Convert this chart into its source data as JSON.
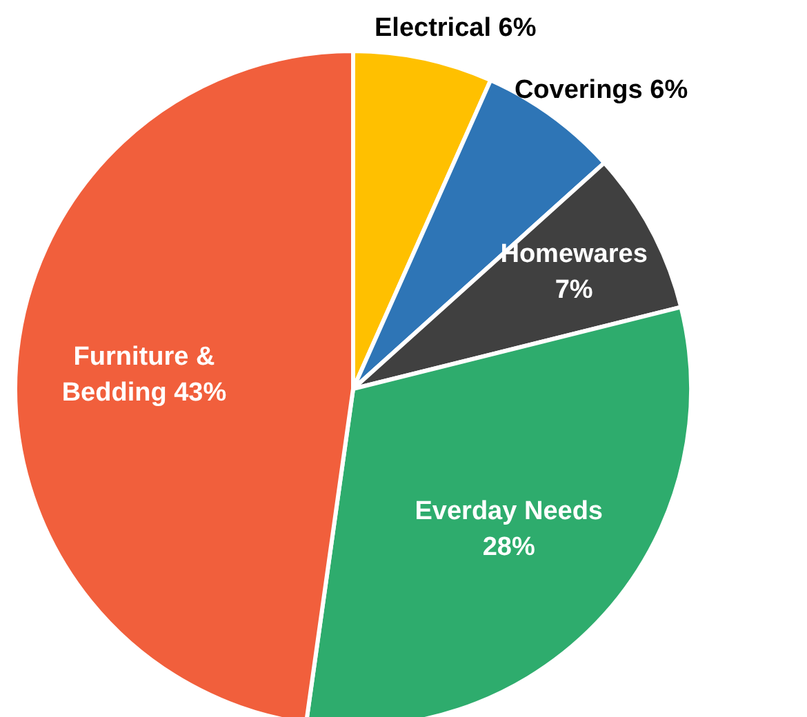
{
  "chart_data": {
    "type": "pie",
    "categories": [
      "Electrical",
      "Coverings",
      "Homewares",
      "Everday Needs",
      "Furniture & Bedding"
    ],
    "values": [
      6,
      6,
      7,
      28,
      43
    ],
    "colors": [
      "#ffc000",
      "#2e75b6",
      "#404040",
      "#2eac6d",
      "#f15f3c"
    ],
    "value_labels": [
      "6%",
      "6%",
      "7%",
      "28%",
      "43%"
    ]
  }
}
